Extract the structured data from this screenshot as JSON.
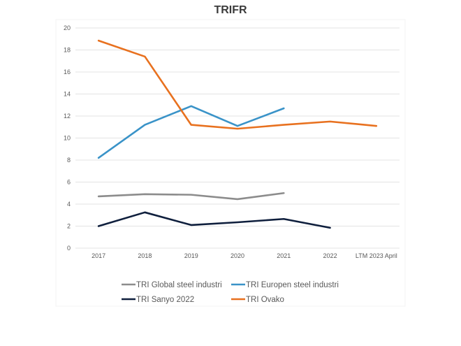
{
  "chart_data": {
    "type": "line",
    "title": "TRIFR",
    "xlabel": "",
    "ylabel": "",
    "categories": [
      "2017",
      "2018",
      "2019",
      "2020",
      "2021",
      "2022",
      "LTM 2023 April"
    ],
    "ylim": [
      0,
      20
    ],
    "yticks": [
      0,
      2,
      4,
      6,
      8,
      10,
      12,
      14,
      16,
      18,
      20
    ],
    "grid": true,
    "legend_position": "bottom",
    "series": [
      {
        "name": "TRI Global steel industri",
        "color": "#8c8c8c",
        "values": [
          4.7,
          4.9,
          4.85,
          4.45,
          5.0,
          null,
          null
        ]
      },
      {
        "name": "TRI Europen steel industri",
        "color": "#3a93c8",
        "values": [
          8.2,
          11.2,
          12.9,
          11.1,
          12.7,
          null,
          null
        ]
      },
      {
        "name": "TRI Sanyo 2022",
        "color": "#0f1f3d",
        "values": [
          2.0,
          3.25,
          2.1,
          2.35,
          2.65,
          1.85,
          null
        ]
      },
      {
        "name": "TRI Ovako",
        "color": "#e8711f",
        "values": [
          18.85,
          17.4,
          11.2,
          10.85,
          11.2,
          11.5,
          11.1
        ]
      }
    ]
  }
}
